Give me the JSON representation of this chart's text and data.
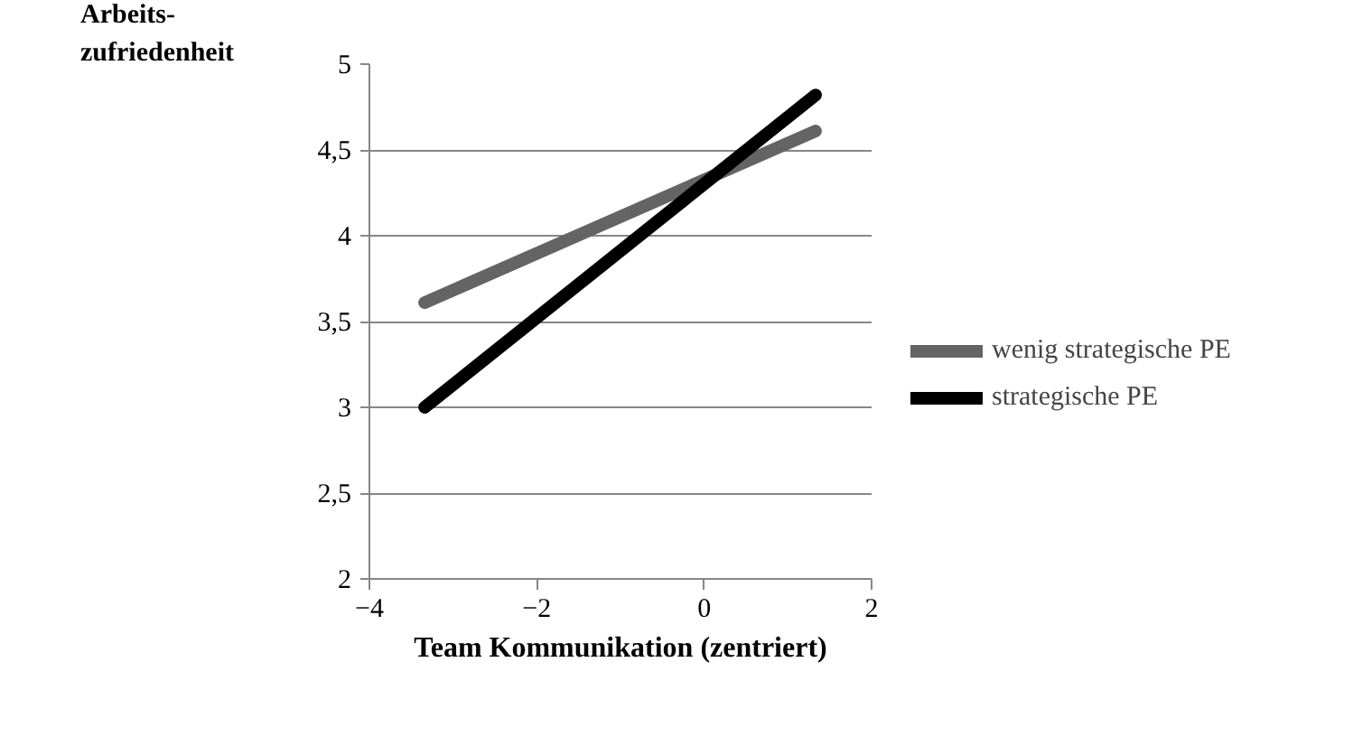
{
  "chart_data": {
    "type": "line",
    "ylabel": "Arbeits-\nzufriedenheit",
    "xlabel": "Team Kommunikation (zentriert)",
    "x": [
      -3.34,
      1.33
    ],
    "series": [
      {
        "name": "wenig strategische PE",
        "color": "#646464",
        "values": [
          3.61,
          4.61
        ]
      },
      {
        "name": "strategische PE",
        "color": "#000000",
        "values": [
          3.0,
          4.82
        ]
      }
    ],
    "xlim": [
      -4,
      2
    ],
    "xticks": [
      -4,
      -2,
      0,
      2
    ],
    "ylim": [
      2,
      5
    ],
    "yticks": [
      2,
      {
        "value": 2.5,
        "label": "2,5"
      },
      3,
      {
        "value": 3.5,
        "label": "3,5"
      },
      4,
      {
        "value": 4.5,
        "label": "4,5"
      },
      5
    ],
    "grid": "y",
    "legend": "right",
    "marker": "none",
    "line_style": "solid"
  }
}
